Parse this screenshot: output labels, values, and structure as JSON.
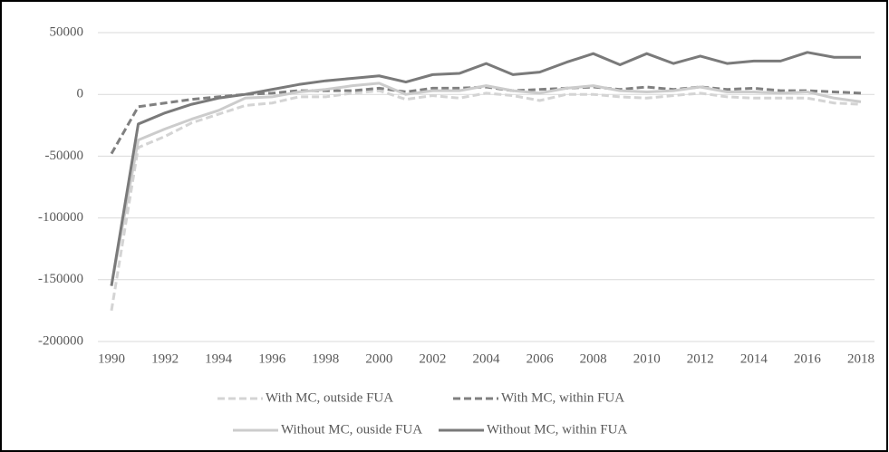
{
  "chart_data": {
    "type": "line",
    "x": [
      1990,
      1991,
      1992,
      1993,
      1994,
      1995,
      1996,
      1997,
      1998,
      1999,
      2000,
      2001,
      2002,
      2003,
      2004,
      2005,
      2006,
      2007,
      2008,
      2009,
      2010,
      2011,
      2012,
      2013,
      2014,
      2015,
      2016,
      2017,
      2018
    ],
    "xlim": [
      1990,
      2018
    ],
    "xticks": [
      1990,
      1992,
      1994,
      1996,
      1998,
      2000,
      2002,
      2004,
      2006,
      2008,
      2010,
      2012,
      2014,
      2016,
      2018
    ],
    "ylim": [
      -200000,
      50000
    ],
    "yticks": [
      -200000,
      -150000,
      -100000,
      -50000,
      0,
      50000
    ],
    "grid": true,
    "series": [
      {
        "name": "With MC, outside FUA",
        "color": "#d4d4d4",
        "style": "dashed",
        "values": [
          -175000,
          -43000,
          -34000,
          -23000,
          -16000,
          -9000,
          -7000,
          -2000,
          -2000,
          1000,
          3000,
          -4000,
          -1000,
          -3000,
          1000,
          -1000,
          -5000,
          0,
          0,
          -2000,
          -3000,
          -1000,
          1000,
          -2000,
          -3000,
          -3000,
          -3000,
          -7000,
          -8000
        ]
      },
      {
        "name": "With MC, within FUA",
        "color": "#808080",
        "style": "dashed",
        "values": [
          -48000,
          -10000,
          -7000,
          -4000,
          -2000,
          0,
          1000,
          3000,
          3000,
          3000,
          5000,
          2000,
          5000,
          5000,
          6000,
          3000,
          4000,
          5000,
          6000,
          4000,
          6000,
          4000,
          6000,
          4000,
          5000,
          3000,
          3000,
          2000,
          1000
        ]
      },
      {
        "name": "Without MC, ouside FUA",
        "color": "#cccccc",
        "style": "solid",
        "values": [
          -155000,
          -37000,
          -28000,
          -20000,
          -13000,
          -3000,
          -2000,
          2000,
          4000,
          7000,
          9000,
          0,
          3000,
          3000,
          7000,
          3000,
          1000,
          5000,
          7000,
          3000,
          2000,
          3000,
          6000,
          2000,
          2000,
          1000,
          2000,
          -3000,
          -6000
        ]
      },
      {
        "name": "Without MC, within FUA",
        "color": "#7a7a7a",
        "style": "solid",
        "values": [
          -155000,
          -24000,
          -15000,
          -8000,
          -3000,
          0,
          4000,
          8000,
          11000,
          13000,
          15000,
          10000,
          16000,
          17000,
          25000,
          16000,
          18000,
          26000,
          33000,
          24000,
          33000,
          25000,
          31000,
          25000,
          27000,
          27000,
          34000,
          30000,
          30000
        ]
      }
    ]
  }
}
